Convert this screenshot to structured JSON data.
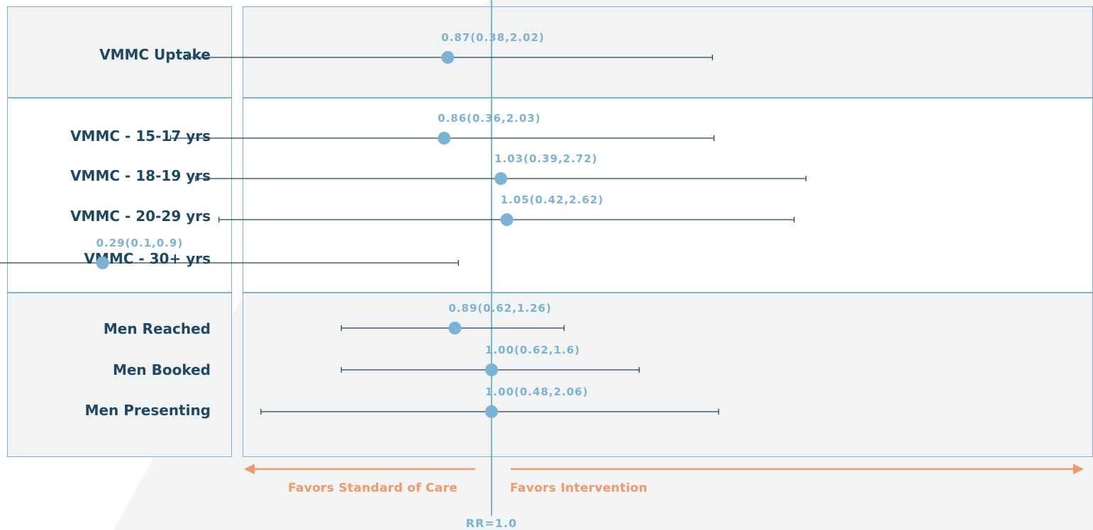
{
  "colors": {
    "label_text": "#1d4866",
    "value_text": "#7ab3d6",
    "point": "#7ab3d6",
    "ci_line": "#1d4866",
    "favor": "#f09a6a",
    "box_border": "#7fb2d0",
    "box_fill_shaded": "#f2f3f3",
    "background_shape": "#f3f4f4"
  },
  "chart_data": {
    "type": "forest",
    "reference_value": 1.0,
    "reference_label": "RR=1.0",
    "xlim": [
      0.05,
      6.0
    ],
    "xscale": "log",
    "favor_left": "Favors Standard of Care",
    "favor_right": "Favors Intervention",
    "groups": [
      {
        "shaded": true,
        "rows": [
          {
            "label": "VMMC Uptake",
            "estimate": 0.87,
            "lower": 0.38,
            "upper": 2.02,
            "text": "0.87(0.38,2.02)"
          }
        ]
      },
      {
        "shaded": false,
        "rows": [
          {
            "label": "VMMC - 15-17 yrs",
            "estimate": 0.86,
            "lower": 0.36,
            "upper": 2.03,
            "text": "0.86(0.36,2.03)"
          },
          {
            "label": "VMMC - 18-19 yrs",
            "estimate": 1.03,
            "lower": 0.39,
            "upper": 2.72,
            "text": "1.03(0.39,2.72)"
          },
          {
            "label": "VMMC - 20-29 yrs",
            "estimate": 1.05,
            "lower": 0.42,
            "upper": 2.62,
            "text": "1.05(0.42,2.62)"
          },
          {
            "label": "VMMC - 30+ yrs",
            "estimate": 0.29,
            "lower": 0.1,
            "upper": 0.9,
            "text": "0.29(0.1,0.9)"
          }
        ]
      },
      {
        "shaded": true,
        "rows": [
          {
            "label": "Men Reached",
            "estimate": 0.89,
            "lower": 0.62,
            "upper": 1.26,
            "text": "0.89(0.62,1.26)"
          },
          {
            "label": "Men Booked",
            "estimate": 1.0,
            "lower": 0.62,
            "upper": 1.6,
            "text": "1.00(0.62,1.6)"
          },
          {
            "label": "Men Presenting",
            "estimate": 1.0,
            "lower": 0.48,
            "upper": 2.06,
            "text": "1.00(0.48,2.06)"
          }
        ]
      }
    ]
  }
}
